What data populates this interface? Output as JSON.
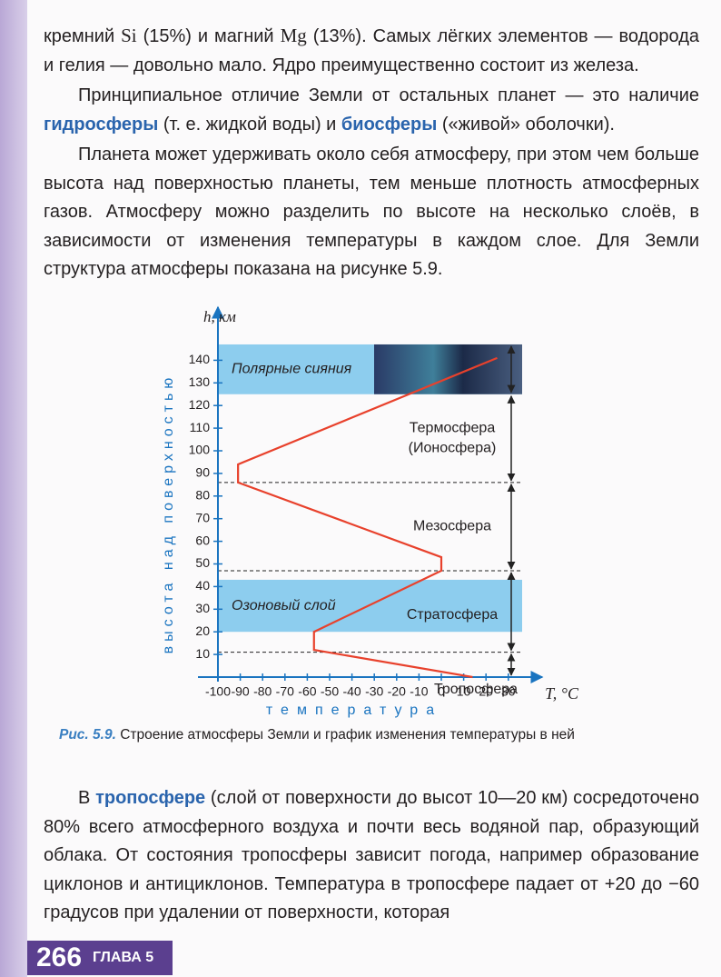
{
  "paragraphs": [
    {
      "indent": false,
      "runs": [
        {
          "text": "кремний "
        },
        {
          "text": "Si",
          "math": true
        },
        {
          "text": " (15%) и магний "
        },
        {
          "text": "Mg",
          "math": true
        },
        {
          "text": " (13%). Самых лёгких элементов — водорода и гелия — довольно мало. Ядро преимущественно состоит из железа."
        }
      ]
    },
    {
      "indent": true,
      "runs": [
        {
          "text": "Принципиальное отличие Земли от остальных планет — это наличие "
        },
        {
          "text": "гидросферы",
          "term": true
        },
        {
          "text": " (т. е. жидкой воды) и "
        },
        {
          "text": "биосферы",
          "term": true
        },
        {
          "text": " («живой» оболочки)."
        }
      ]
    },
    {
      "indent": true,
      "runs": [
        {
          "text": "Планета может удерживать около себя атмосферу, при этом чем больше высота над поверхностью планеты, тем меньше плотность атмосферных газов. Атмосферу можно разделить по высоте на несколько слоёв, в зависимости от изменения температуры в каждом слое. Для Земли структура атмосферы показана на рисунке 5.9."
        }
      ]
    }
  ],
  "chart_data": {
    "type": "line",
    "y_axis_label": "h, км",
    "x_axis_label": "T, °C",
    "y_axis_title": "высота над поверхностью",
    "x_axis_title": "температура",
    "x": [
      14,
      -57,
      -57,
      0,
      0,
      -91,
      -91,
      25
    ],
    "series": [
      {
        "color": "#e8412c",
        "values": [
          0,
          12,
          20,
          47,
          53,
          86,
          94,
          141
        ]
      }
    ],
    "xlim": [
      -100,
      35
    ],
    "ylim": [
      0,
      150
    ],
    "xticks": [
      -100,
      -90,
      -80,
      -70,
      -60,
      -50,
      -40,
      -30,
      -20,
      -10,
      0,
      10,
      20,
      30
    ],
    "yticks": [
      10,
      20,
      30,
      40,
      50,
      60,
      70,
      80,
      90,
      100,
      110,
      120,
      130,
      140
    ],
    "bands": [
      {
        "label": "Полярные сияния",
        "from": 125,
        "to": 147,
        "color": "#8dcdee"
      },
      {
        "label": "Озоновый слой",
        "from": 20,
        "to": 43,
        "color": "#8dcdee"
      }
    ],
    "boundaries": [
      11,
      47,
      86
    ],
    "layers": [
      {
        "label_lines": [
          "Тропосфера"
        ],
        "from": 0,
        "to": 11
      },
      {
        "label_lines": [
          "Стратосфера"
        ],
        "from": 11,
        "to": 47
      },
      {
        "label_lines": [
          "Мезосфера"
        ],
        "from": 47,
        "to": 86
      },
      {
        "label_lines": [
          "Термосфера",
          "(Ионосфера)"
        ],
        "from": 86,
        "to": 125
      },
      {
        "label_lines": [],
        "from": 125,
        "to": 147
      }
    ]
  },
  "caption": {
    "label": "Рис. 5.9.",
    "text": " Строение атмосферы Земли и график изменения температуры в ней"
  },
  "paragraphs_after": [
    {
      "indent": true,
      "runs": [
        {
          "text": "В "
        },
        {
          "text": "тропосфере",
          "term": true
        },
        {
          "text": " (слой от поверхности до высот 10—20 км) сосредоточено 80% всего атмосферного воздуха и почти весь водяной пар, образующий облака. От состояния тропосферы зависит погода, например образование циклонов и антициклонов. Температура в тропосфере падает от +20 до −60 градусов при удалении от поверхности, которая"
        }
      ]
    }
  ],
  "footer": {
    "page": "266",
    "chapter": "ГЛАВА 5"
  }
}
